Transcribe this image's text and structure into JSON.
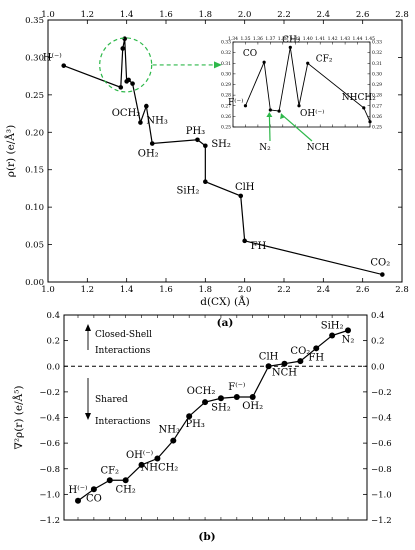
{
  "chart_data": [
    {
      "type": "line",
      "panel_label": "(a)",
      "xlabel": "d(CX) (Å)",
      "ylabel": "ρ(r) (e/Å³)",
      "xlim": [
        1.0,
        2.8
      ],
      "ylim": [
        0.0,
        0.35
      ],
      "xticks": [
        "1.0",
        "1.2",
        "1.4",
        "1.6",
        "1.8",
        "2.0",
        "2.2",
        "2.4",
        "2.6",
        "2.8"
      ],
      "yticks": [
        "0.00",
        "0.05",
        "0.10",
        "0.15",
        "0.20",
        "0.25",
        "0.30",
        "0.35"
      ],
      "points": [
        {
          "label": "H⁽⁻⁾",
          "x": 1.08,
          "y": 0.289
        },
        {
          "label": "",
          "x": 1.37,
          "y": 0.26
        },
        {
          "label": "",
          "x": 1.38,
          "y": 0.312
        },
        {
          "label": "",
          "x": 1.39,
          "y": 0.325
        },
        {
          "label": "",
          "x": 1.4,
          "y": 0.268
        },
        {
          "label": "",
          "x": 1.41,
          "y": 0.27
        },
        {
          "label": "",
          "x": 1.43,
          "y": 0.265
        },
        {
          "label": "NH₃",
          "x": 1.47,
          "y": 0.213
        },
        {
          "label": "OCH₂",
          "x": 1.5,
          "y": 0.235
        },
        {
          "label": "OH₂",
          "x": 1.53,
          "y": 0.185
        },
        {
          "label": "PH₃",
          "x": 1.76,
          "y": 0.19
        },
        {
          "label": "SH₂",
          "x": 1.8,
          "y": 0.182
        },
        {
          "label": "SiH₂",
          "x": 1.8,
          "y": 0.134
        },
        {
          "label": "ClH",
          "x": 1.98,
          "y": 0.115
        },
        {
          "label": "FH",
          "x": 2.0,
          "y": 0.055
        },
        {
          "label": "CO₂",
          "x": 2.7,
          "y": 0.01
        }
      ],
      "inset": {
        "xticks": [
          "1.34",
          "1.35",
          "1.36",
          "1.37",
          "1.38",
          "1.39",
          "1.40",
          "1.41",
          "1.42",
          "1.43",
          "1.44",
          "1.45"
        ],
        "yticks": [
          "0.33",
          "0.32",
          "0.31",
          "0.30",
          "0.29",
          "0.28",
          "0.27",
          "0.26",
          "0.25"
        ],
        "points": [
          {
            "label": "F⁽⁻⁾",
            "x": 1.35,
            "y": 0.27
          },
          {
            "label": "CO",
            "x": 1.365,
            "y": 0.311
          },
          {
            "label": "N₂",
            "x": 1.37,
            "y": 0.266
          },
          {
            "label": "NCH",
            "x": 1.377,
            "y": 0.265
          },
          {
            "label": "CH₂",
            "x": 1.386,
            "y": 0.325
          },
          {
            "label": "OH⁽⁻⁾",
            "x": 1.393,
            "y": 0.27
          },
          {
            "label": "CF₂",
            "x": 1.4,
            "y": 0.31
          },
          {
            "label": "NHCH₂",
            "x": 1.445,
            "y": 0.268
          },
          {
            "label": "",
            "x": 1.45,
            "y": 0.255
          }
        ]
      }
    },
    {
      "type": "line",
      "panel_label": "(b)",
      "ylabel": "∇²ρ(r) (e/Å⁵)",
      "ylim": [
        -1.2,
        0.4
      ],
      "yticks": [
        "0.4",
        "0.2",
        "0.0",
        "−0.2",
        "−0.4",
        "−0.6",
        "−0.8",
        "−1.0",
        "−1.2"
      ],
      "annotations": {
        "upper": [
          "Closed-Shell",
          "Interactions"
        ],
        "lower": [
          "Shared",
          "Interactions"
        ]
      },
      "categories": [
        "H⁽⁻⁾",
        "CO",
        "CF₂",
        "CH₂",
        "OH⁽⁻⁾",
        "NHCH₂",
        "NH₃",
        "PH₃",
        "OCH₂",
        "SH₂",
        "F⁽⁻⁾",
        "OH₂",
        "ClH",
        "NCH",
        "CO₂",
        "FH",
        "SiH₂",
        "N₂"
      ],
      "values": [
        -1.05,
        -0.96,
        -0.89,
        -0.89,
        -0.77,
        -0.72,
        -0.58,
        -0.39,
        -0.28,
        -0.25,
        -0.24,
        -0.24,
        0.0,
        0.02,
        0.04,
        0.14,
        0.24,
        0.28
      ]
    }
  ]
}
